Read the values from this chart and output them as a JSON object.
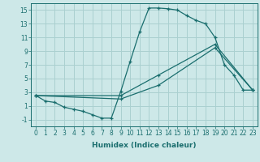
{
  "xlabel": "Humidex (Indice chaleur)",
  "background_color": "#cde8e8",
  "grid_color": "#aad0d0",
  "line_color": "#1a6e6e",
  "xlim": [
    -0.5,
    23.5
  ],
  "ylim": [
    -2.0,
    16.0
  ],
  "xticks": [
    0,
    1,
    2,
    3,
    4,
    5,
    6,
    7,
    8,
    9,
    10,
    11,
    12,
    13,
    14,
    15,
    16,
    17,
    18,
    19,
    20,
    21,
    22,
    23
  ],
  "yticks": [
    -1,
    1,
    3,
    5,
    7,
    9,
    11,
    13,
    15
  ],
  "line1_x": [
    0,
    1,
    2,
    3,
    4,
    5,
    6,
    7,
    8,
    9,
    10,
    11,
    12,
    13,
    14,
    15,
    16,
    17,
    18,
    19,
    20,
    21,
    22,
    23
  ],
  "line1_y": [
    2.5,
    1.7,
    1.5,
    0.8,
    0.5,
    0.2,
    -0.3,
    -0.8,
    -0.8,
    3.1,
    7.5,
    11.8,
    15.3,
    15.3,
    15.2,
    15.0,
    14.2,
    13.5,
    13.0,
    11.0,
    7.0,
    5.5,
    3.3,
    3.3
  ],
  "line2_x": [
    0,
    9,
    13,
    19,
    23
  ],
  "line2_y": [
    2.5,
    2.5,
    5.5,
    10.0,
    3.3
  ],
  "line3_x": [
    0,
    9,
    13,
    19,
    23
  ],
  "line3_y": [
    2.5,
    2.0,
    4.0,
    9.5,
    3.3
  ],
  "marker_size": 3.5,
  "line_width": 0.9,
  "xlabel_fontsize": 6.5,
  "tick_fontsize": 5.5
}
